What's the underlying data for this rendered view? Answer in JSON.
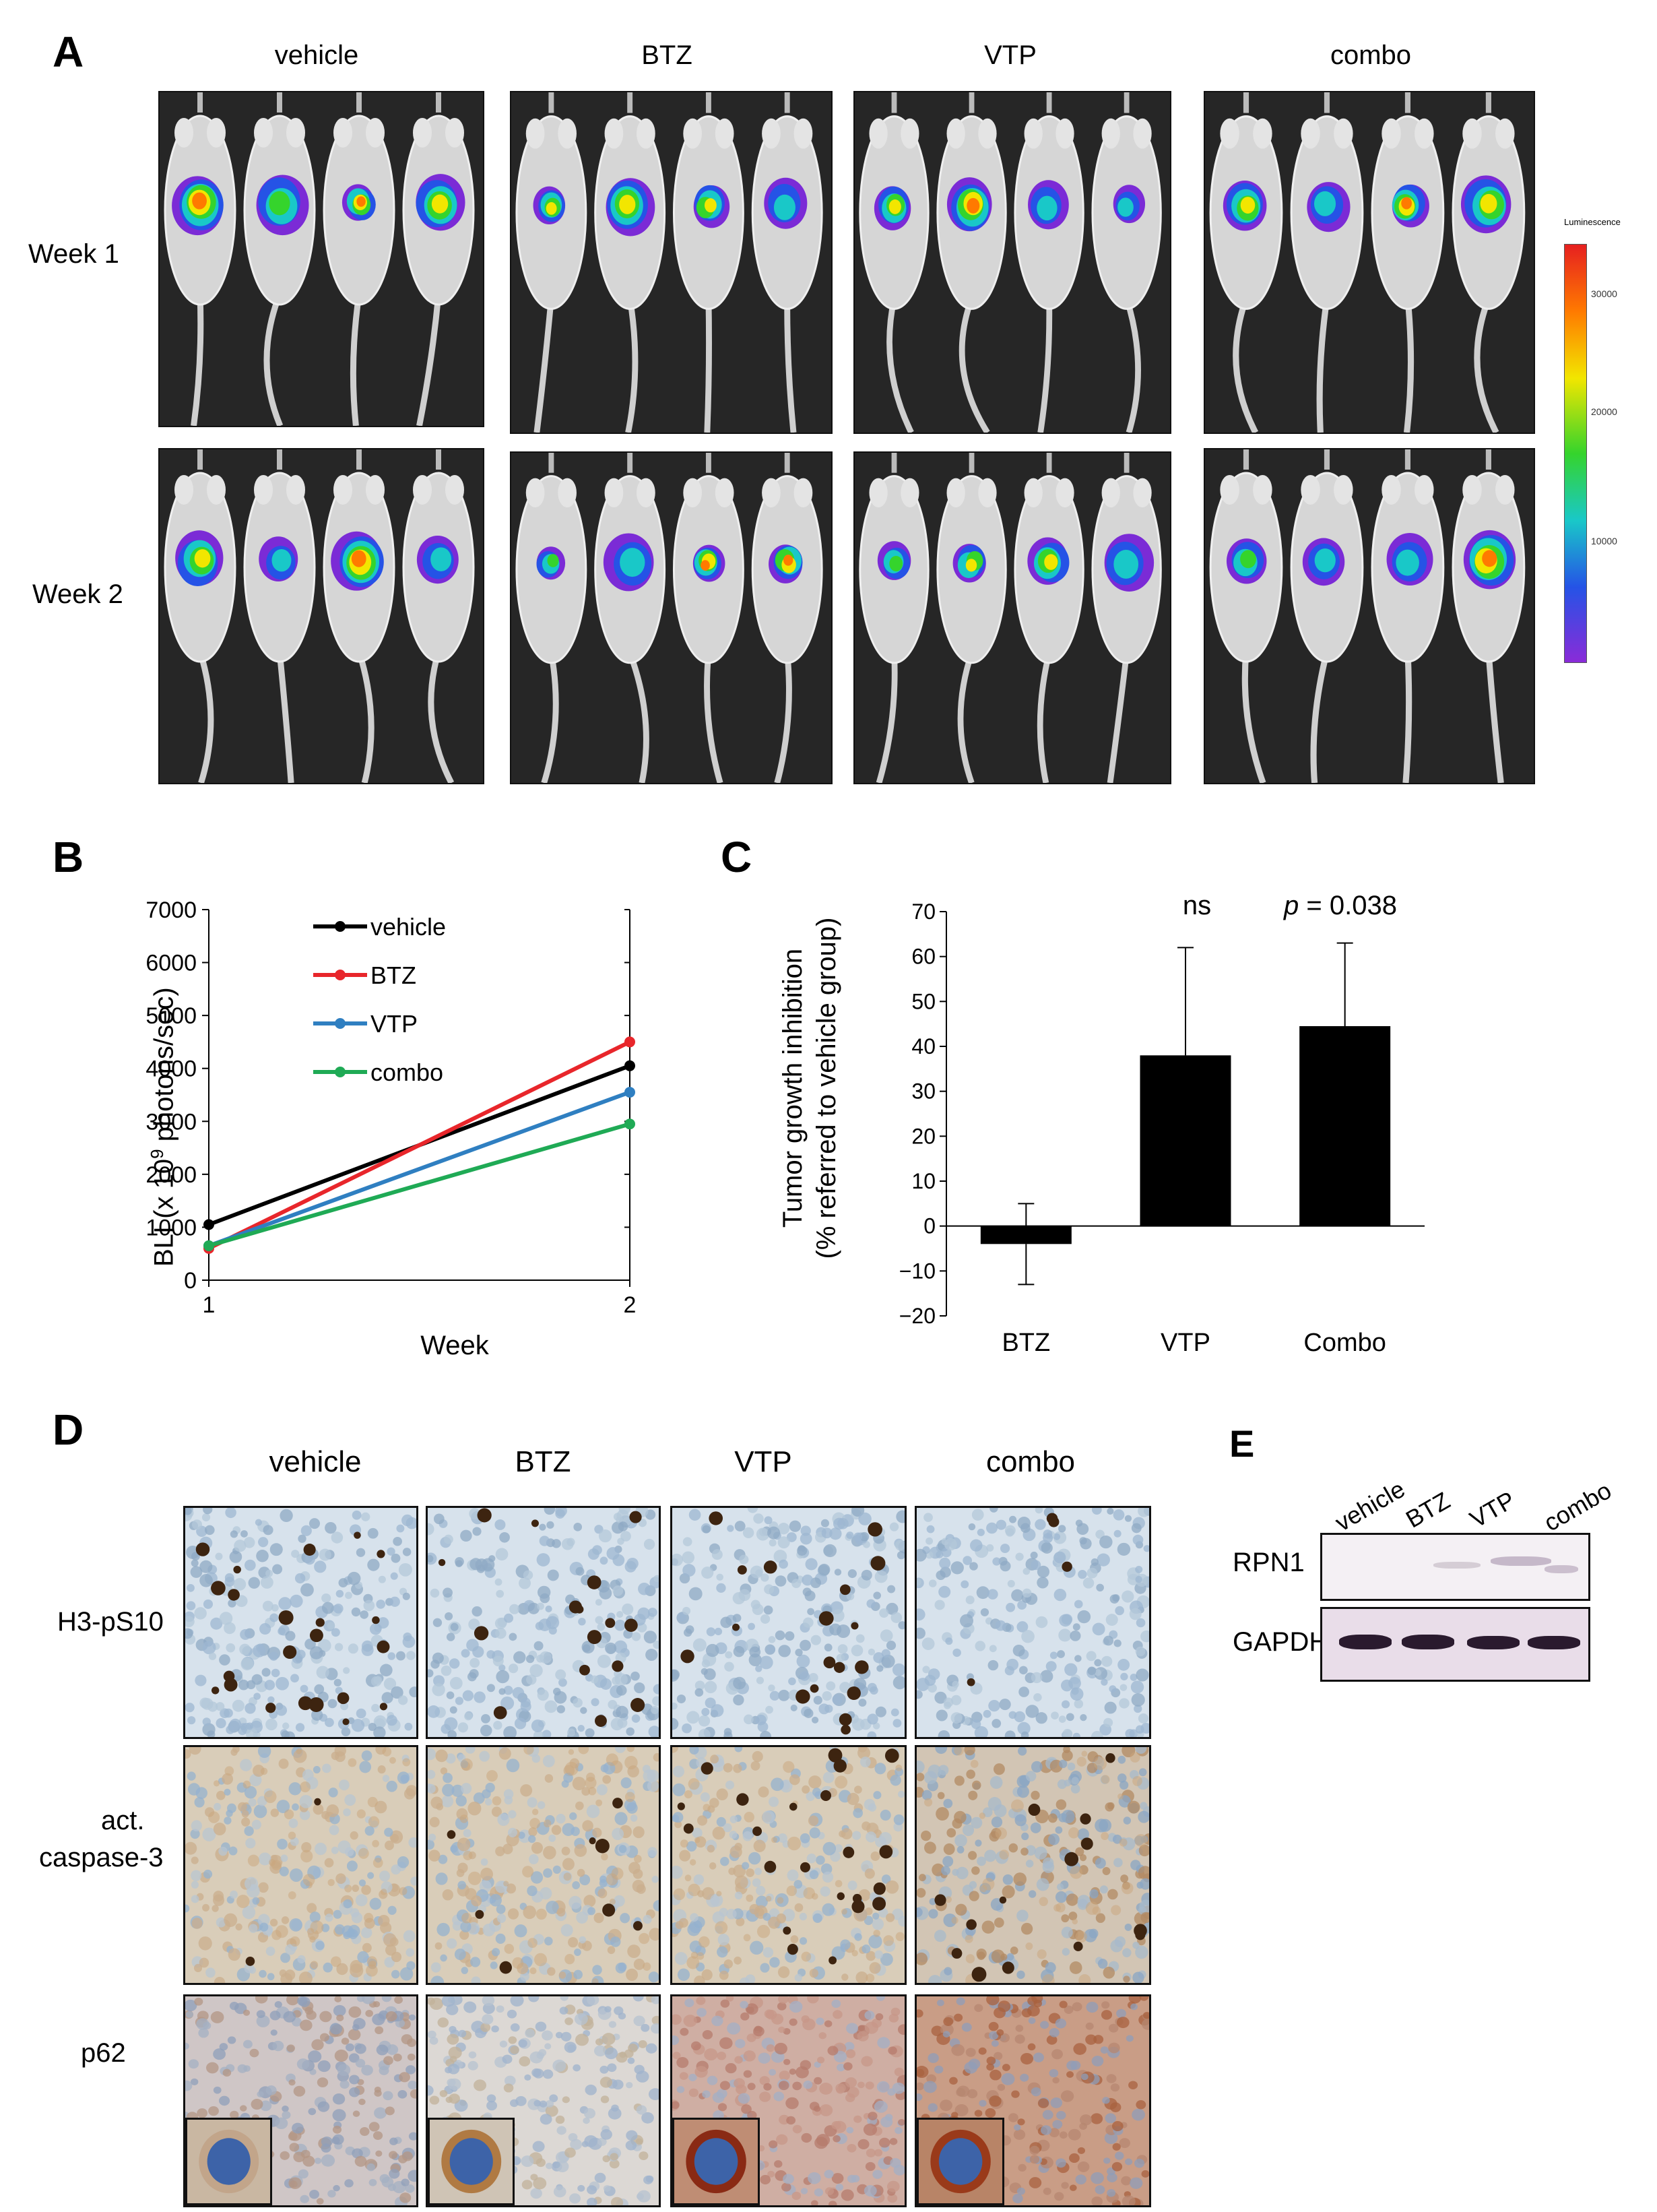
{
  "panelA": {
    "letter": "A",
    "groups": [
      "vehicle",
      "BTZ",
      "VTP",
      "combo"
    ],
    "rows": [
      "Week 1",
      "Week 2"
    ],
    "colorbar": {
      "title": "Luminescence",
      "ticks": [
        "30000",
        "20000",
        "10000"
      ]
    }
  },
  "panelB": {
    "letter": "B",
    "ylabel_pre": "BLI (x 10",
    "ylabel_sup": "9",
    "ylabel_post": " photons/sec)",
    "xlabel": "Week"
  },
  "panelC": {
    "letter": "C",
    "ylabel_line1": "Tumor growth inhibition",
    "ylabel_line2": "(% referred to vehicle group)",
    "annot_ns": "ns",
    "annot_p_italic": "p",
    "annot_p_rest": " = 0.038"
  },
  "panelD": {
    "letter": "D",
    "groups": [
      "vehicle",
      "BTZ",
      "VTP",
      "combo"
    ],
    "rows": [
      "H3-pS10",
      "act.",
      "caspase-3",
      "p62"
    ]
  },
  "panelE": {
    "letter": "E",
    "lanes": [
      "vehicle",
      "BTZ",
      "VTP",
      "combo"
    ],
    "rows": [
      "RPN1",
      "GAPDH"
    ]
  },
  "chart_data": [
    {
      "type": "line",
      "x": [
        1,
        2
      ],
      "xticks": [
        "1",
        "2"
      ],
      "ylim": [
        0,
        7000
      ],
      "yticks": [
        "0",
        "1000",
        "2000",
        "3000",
        "4000",
        "5000",
        "6000",
        "7000"
      ],
      "legend_position": "top-left",
      "series": [
        {
          "name": "vehicle",
          "values": [
            1050,
            4050
          ],
          "color": "#000000"
        },
        {
          "name": "BTZ",
          "values": [
            600,
            4500
          ],
          "color": "#e8262b"
        },
        {
          "name": "VTP",
          "values": [
            650,
            3550
          ],
          "color": "#2f7fc1"
        },
        {
          "name": "combo",
          "values": [
            650,
            2950
          ],
          "color": "#1faa55"
        }
      ]
    },
    {
      "type": "bar",
      "categories": [
        "BTZ",
        "VTP",
        "Combo"
      ],
      "values": [
        -4,
        38,
        44.5
      ],
      "error": [
        9,
        24,
        18.5
      ],
      "ylim": [
        -20,
        70
      ],
      "yticks": [
        "70",
        "60",
        "50",
        "40",
        "30",
        "20",
        "10",
        "0",
        "−10",
        "−20"
      ],
      "color": "#000000"
    }
  ]
}
